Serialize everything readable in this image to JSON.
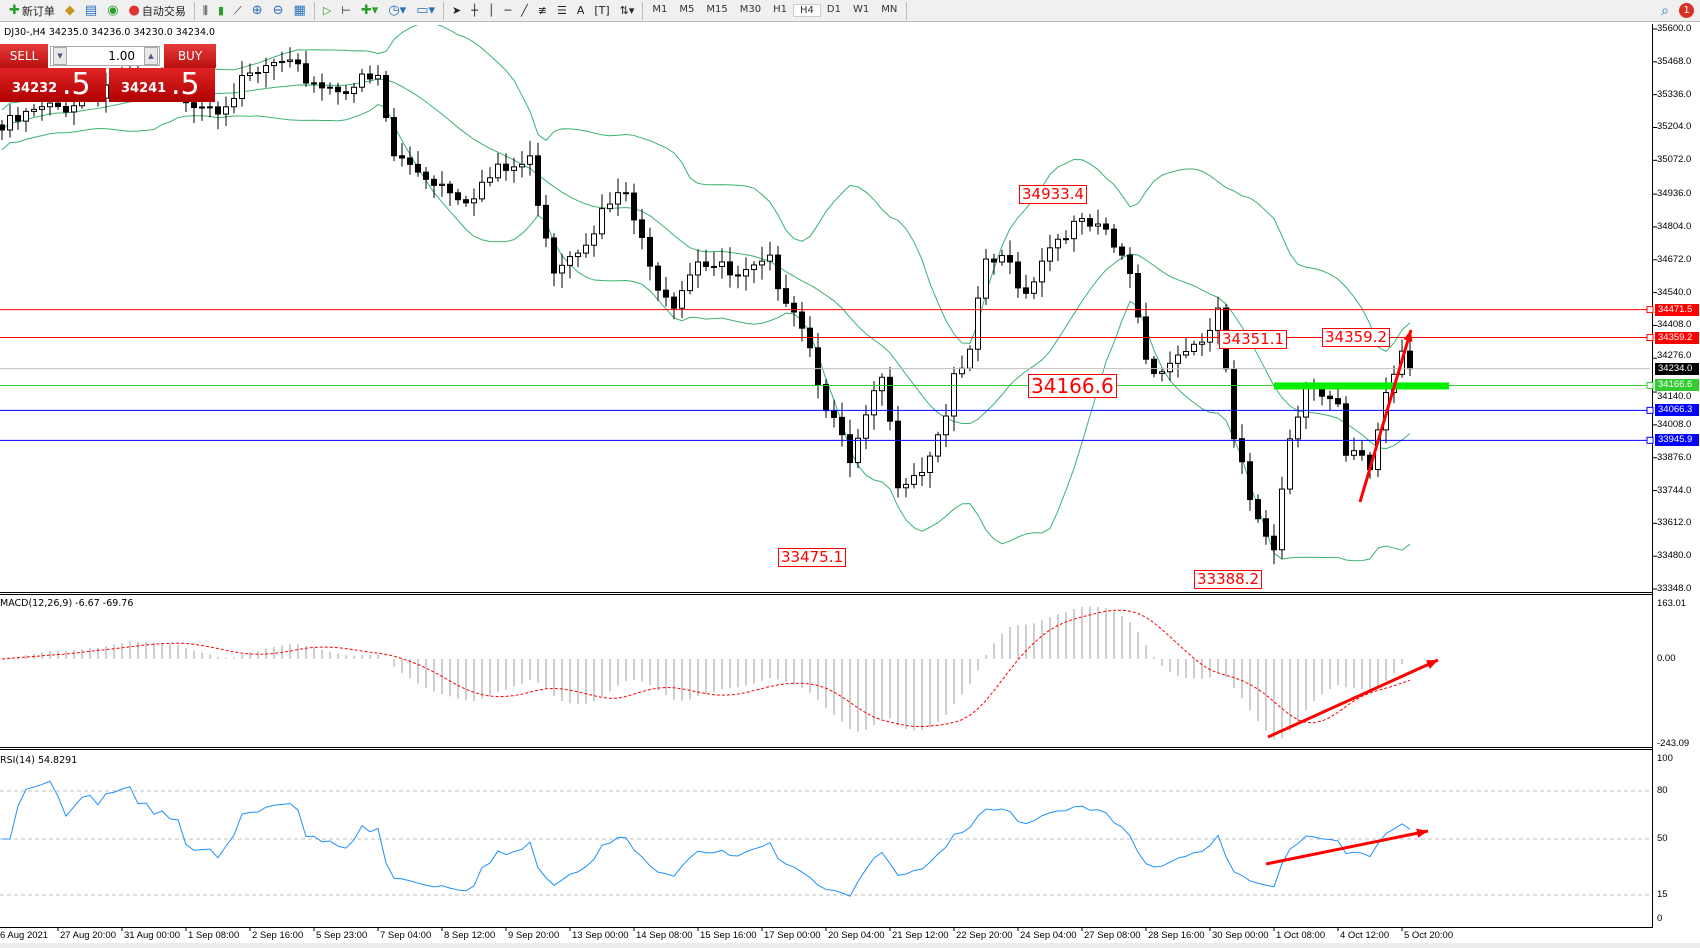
{
  "toolbar": {
    "new_order": "新订单",
    "auto_trading": "自动交易",
    "timeframes": [
      "M1",
      "M5",
      "M15",
      "M30",
      "H1",
      "H4",
      "D1",
      "W1",
      "MN"
    ],
    "active_timeframe": "H4",
    "notification_count": "1",
    "icons": [
      "new-order-icon",
      "gold-icon",
      "navigator-icon",
      "signals-icon",
      "auto-trading-icon",
      "bar-chart-icon",
      "candlestick-icon",
      "line-chart-icon",
      "zoom-in-icon",
      "zoom-out-icon",
      "tile-windows-icon",
      "auto-scroll-icon",
      "chart-shift-icon",
      "indicators-icon",
      "periods-icon",
      "templates-icon",
      "cursor-icon",
      "crosshair-icon",
      "vertical-line-icon",
      "horizontal-line-icon",
      "trendline-icon",
      "fibonacci-icon",
      "fibo-fan-icon",
      "text-icon",
      "text-label-icon",
      "arrows-icon",
      "search-icon",
      "chat-icon"
    ]
  },
  "chart": {
    "symbol_info": "DJ30-,H4  34235.0 34236.0 34230.0 34234.0",
    "trade_panel": {
      "sell": "SELL",
      "buy": "BUY",
      "lot": "1.00",
      "bid_main": "34232",
      "bid_pip": ".5",
      "ask_main": "34241",
      "ask_pip": ".5"
    },
    "price_axis": [
      "35600.0",
      "35468.0",
      "35336.0",
      "35204.0",
      "35072.0",
      "34936.0",
      "34804.0",
      "34672.0",
      "34540.0",
      "34408.0",
      "34276.0",
      "34140.0",
      "34008.0",
      "33876.0",
      "33744.0",
      "33612.0",
      "33480.0",
      "33348.0"
    ],
    "price_range": [
      33348,
      35600
    ],
    "levels": [
      {
        "price": 34471.5,
        "label": "34471.5",
        "color": "#ff0000"
      },
      {
        "price": 34359.2,
        "label": "34359.2",
        "color": "#ff0000"
      },
      {
        "price": 34234.0,
        "label": "34234.0",
        "color": "#000000"
      },
      {
        "price": 34166.6,
        "label": "34166.6",
        "color": "#33cc33"
      },
      {
        "price": 34066.3,
        "label": "34066.3",
        "color": "#0000ff"
      },
      {
        "price": 33945.9,
        "label": "33945.9",
        "color": "#0000ff"
      }
    ],
    "annotations": [
      "34933.4",
      "33475.1",
      "34166.6",
      "34351.1",
      "34359.2",
      "33388.2"
    ],
    "price_keypoints": [
      [
        0,
        35194
      ],
      [
        4,
        35260
      ],
      [
        7,
        35281
      ],
      [
        14,
        35390
      ],
      [
        27,
        35303
      ],
      [
        34,
        35456
      ],
      [
        41,
        35369
      ],
      [
        47,
        35390
      ],
      [
        49,
        35085
      ],
      [
        54,
        34998
      ],
      [
        58,
        34932
      ],
      [
        62,
        35020
      ],
      [
        66,
        35063
      ],
      [
        69,
        34649
      ],
      [
        72,
        34736
      ],
      [
        76,
        34889
      ],
      [
        78,
        34932
      ],
      [
        81,
        34627
      ],
      [
        84,
        34518
      ],
      [
        87,
        34692
      ],
      [
        92,
        34583
      ],
      [
        96,
        34649
      ],
      [
        100,
        34430
      ],
      [
        103,
        34103
      ],
      [
        106,
        33841
      ],
      [
        108,
        34016
      ],
      [
        110,
        34190
      ],
      [
        112,
        33798
      ],
      [
        115,
        33841
      ],
      [
        117,
        33972
      ],
      [
        119,
        34169
      ],
      [
        121,
        34278
      ],
      [
        123,
        34670
      ],
      [
        126,
        34649
      ],
      [
        128,
        34540
      ],
      [
        130,
        34692
      ],
      [
        133,
        34801
      ],
      [
        136,
        34801
      ],
      [
        138,
        34758
      ],
      [
        141,
        34627
      ],
      [
        143,
        34278
      ],
      [
        145,
        34234
      ],
      [
        148,
        34321
      ],
      [
        150,
        34300
      ],
      [
        152,
        34474
      ],
      [
        154,
        33929
      ],
      [
        156,
        33710
      ],
      [
        159,
        33536
      ],
      [
        161,
        33972
      ],
      [
        163,
        34190
      ],
      [
        165,
        34103
      ],
      [
        167,
        34059
      ],
      [
        168,
        33863
      ],
      [
        170,
        33885
      ],
      [
        171,
        33841
      ],
      [
        173,
        34147
      ],
      [
        175,
        34321
      ],
      [
        176,
        34234
      ]
    ],
    "time_axis": [
      "6 Aug 2021",
      "27 Aug 20:00",
      "31 Aug 00:00",
      "1 Sep 08:00",
      "2 Sep 16:00",
      "5 Sep 23:00",
      "7 Sep 04:00",
      "8 Sep 12:00",
      "9 Sep 20:00",
      "13 Sep 00:00",
      "14 Sep 08:00",
      "15 Sep 16:00",
      "17 Sep 00:00",
      "20 Sep 04:00",
      "21 Sep 12:00",
      "22 Sep 20:00",
      "24 Sep 04:00",
      "27 Sep 08:00",
      "28 Sep 16:00",
      "30 Sep 00:00",
      "1 Oct 08:00",
      "4 Oct 12:00",
      "5 Oct 20:00"
    ],
    "colors": {
      "bands": "#3cb371",
      "arrow": "#ff0000",
      "highlight": "#00ee00"
    }
  },
  "macd": {
    "label": "MACD(12,26,9) -6.67 -69.76",
    "axis": [
      "163.01",
      "0.00",
      "-243.09"
    ],
    "range": [
      -243.09,
      163.01
    ]
  },
  "rsi": {
    "label": "RSI(14) 54.8291",
    "axis": [
      "100",
      "80",
      "50",
      "15",
      "0"
    ],
    "levels": [
      80,
      50,
      15
    ]
  }
}
